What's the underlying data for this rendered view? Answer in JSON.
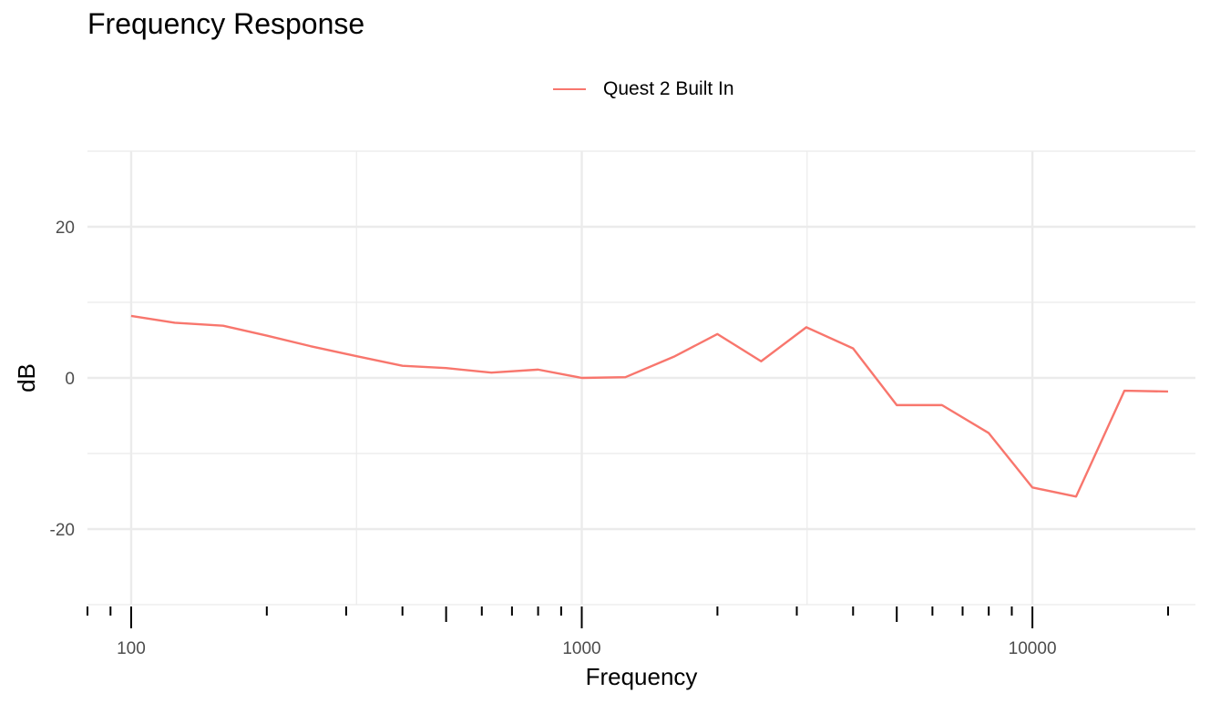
{
  "chart_data": {
    "type": "line",
    "title": "Frequency Response",
    "xlabel": "Frequency",
    "ylabel": "dB",
    "x_scale": "log",
    "xlim": [
      80,
      23000
    ],
    "ylim": [
      -30,
      30
    ],
    "x_ticks": [
      100,
      1000,
      10000
    ],
    "x_tick_labels": [
      "100",
      "1000",
      "10000"
    ],
    "y_ticks": [
      -20,
      0,
      20
    ],
    "y_tick_labels": [
      "-20",
      "0",
      "20"
    ],
    "grid": true,
    "legend_position": "top",
    "series": [
      {
        "name": "Quest 2 Built In",
        "color": "#F8766D",
        "x": [
          100,
          125,
          160,
          200,
          250,
          315,
          400,
          500,
          630,
          800,
          1000,
          1250,
          1600,
          2000,
          2500,
          3150,
          4000,
          5000,
          6300,
          8000,
          10000,
          12500,
          16000,
          20000
        ],
        "y": [
          8.2,
          7.3,
          6.9,
          5.6,
          4.2,
          2.9,
          1.6,
          1.3,
          0.7,
          1.1,
          0.0,
          0.1,
          2.8,
          5.8,
          2.2,
          6.7,
          3.9,
          -3.6,
          -3.6,
          -7.3,
          -14.5,
          -15.7,
          -1.7,
          -1.8
        ]
      }
    ]
  }
}
